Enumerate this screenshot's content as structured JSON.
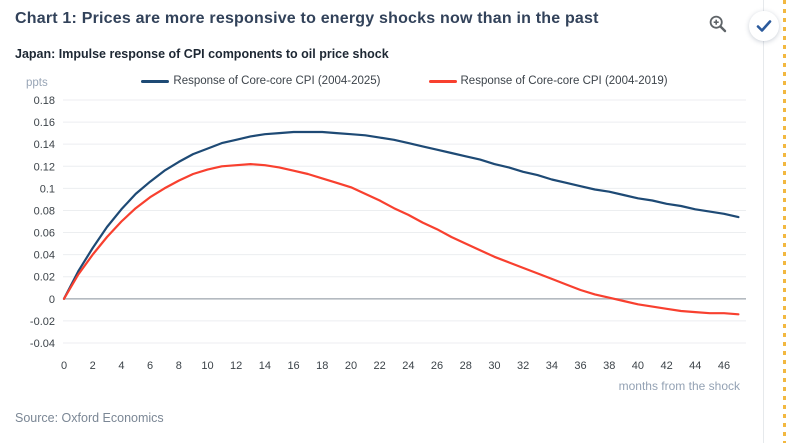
{
  "header": {
    "title": "Chart 1: Prices are more responsive to energy shocks now than in the past",
    "icons": {
      "zoom": "magnifier-plus",
      "selected": "checkmark"
    }
  },
  "chart": {
    "subtitle": "Japan: Impulse response of CPI components to oil price shock",
    "y_axis_label": "ppts",
    "x_axis_label": "months from the shock",
    "source": "Source: Oxford Economics"
  },
  "colors": {
    "series_2004_2025": "#1e4a75",
    "series_2004_2019": "#f8402f",
    "gridline": "#eceef0",
    "zero_line": "#b4bac0",
    "tick_text": "#3c4349",
    "muted_text": "#94a2b4",
    "title_text": "#32425a",
    "accent_edge": "#f2b840",
    "check_blue": "#2b5a9c",
    "icon_gray": "#5f6468"
  },
  "chart_data": {
    "type": "line",
    "title": "Chart 1: Prices are more responsive to energy shocks now than in the past",
    "subtitle": "Japan: Impulse response of CPI components to oil price shock",
    "xlabel": "months from the shock",
    "ylabel": "ppts",
    "ylim": [
      -0.04,
      0.18
    ],
    "ytick_step": 0.02,
    "xticks": [
      0,
      2,
      4,
      6,
      8,
      10,
      12,
      14,
      16,
      18,
      20,
      22,
      24,
      26,
      28,
      30,
      32,
      34,
      36,
      38,
      40,
      42,
      44,
      46
    ],
    "grid": "horizontal",
    "legend_position": "top",
    "x": [
      0,
      1,
      2,
      3,
      4,
      5,
      6,
      7,
      8,
      9,
      10,
      11,
      12,
      13,
      14,
      15,
      16,
      17,
      18,
      19,
      20,
      21,
      22,
      23,
      24,
      25,
      26,
      27,
      28,
      29,
      30,
      31,
      32,
      33,
      34,
      35,
      36,
      37,
      38,
      39,
      40,
      41,
      42,
      43,
      44,
      45,
      46,
      47
    ],
    "series": [
      {
        "name": "Response of Core-core CPI (2004-2025)",
        "color": "#1e4a75",
        "values": [
          0.0,
          0.025,
          0.046,
          0.065,
          0.081,
          0.095,
          0.106,
          0.116,
          0.124,
          0.131,
          0.136,
          0.141,
          0.144,
          0.147,
          0.149,
          0.15,
          0.151,
          0.151,
          0.151,
          0.15,
          0.149,
          0.148,
          0.146,
          0.144,
          0.141,
          0.138,
          0.135,
          0.132,
          0.129,
          0.126,
          0.122,
          0.119,
          0.115,
          0.112,
          0.108,
          0.105,
          0.102,
          0.099,
          0.097,
          0.094,
          0.091,
          0.089,
          0.086,
          0.084,
          0.081,
          0.079,
          0.077,
          0.074
        ]
      },
      {
        "name": "Response of Core-core CPI (2004-2019)",
        "color": "#f8402f",
        "values": [
          0.0,
          0.022,
          0.04,
          0.056,
          0.07,
          0.082,
          0.092,
          0.1,
          0.107,
          0.113,
          0.117,
          0.12,
          0.121,
          0.122,
          0.121,
          0.119,
          0.116,
          0.113,
          0.109,
          0.105,
          0.101,
          0.095,
          0.089,
          0.082,
          0.076,
          0.069,
          0.063,
          0.056,
          0.05,
          0.044,
          0.038,
          0.033,
          0.028,
          0.023,
          0.018,
          0.013,
          0.008,
          0.004,
          0.001,
          -0.002,
          -0.005,
          -0.007,
          -0.009,
          -0.011,
          -0.012,
          -0.013,
          -0.013,
          -0.014
        ]
      }
    ]
  }
}
